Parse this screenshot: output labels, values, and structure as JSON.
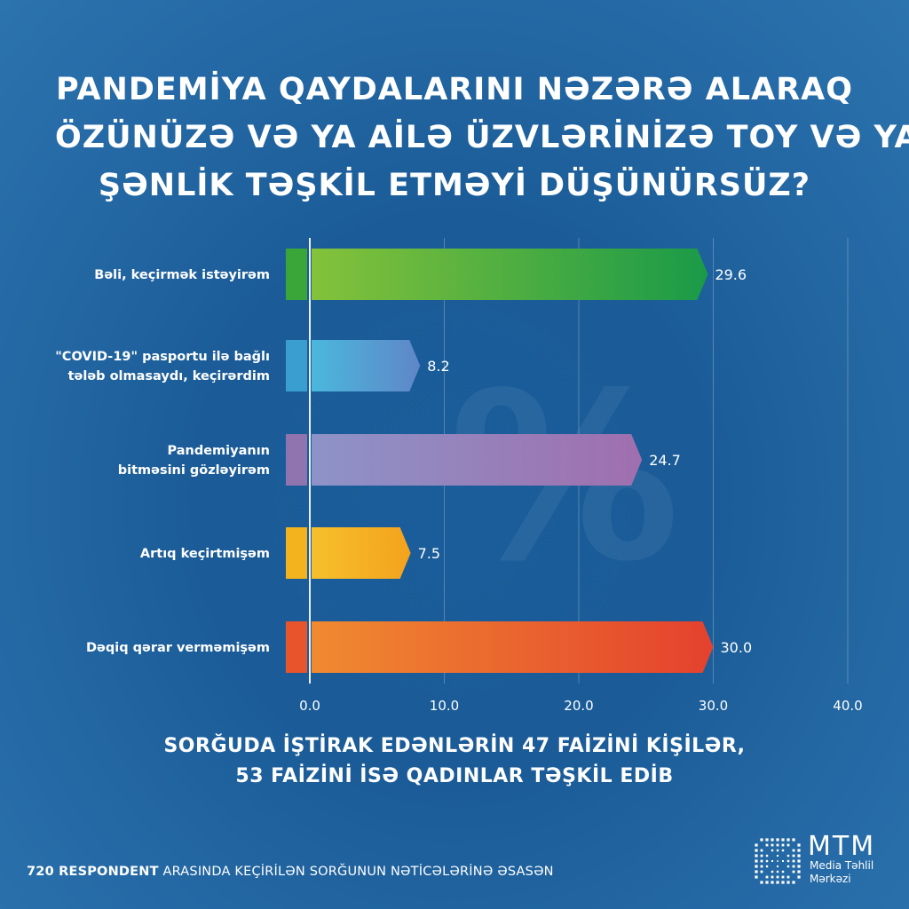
{
  "title_lines": [
    "PANDEMİYA QAYDALARINI NƏZƏRƏ ALARAQ",
    "ÖZÜNÜZƏ VƏ YA AİLƏ ÜZVLƏRİNİZƏ TOY VƏ YA",
    "ŞƏNLİK TƏŞKİL ETMƏYİ DÜŞÜNÜRSÜZ?"
  ],
  "watermark_symbol": "%",
  "chart_data": {
    "type": "bar",
    "orientation": "horizontal",
    "categories": [
      [
        "Bəli, keçirmək istəyirəm"
      ],
      [
        "\"COVID-19\" pasportu ilə bağlı",
        "tələb olmasaydı, keçirərdim"
      ],
      [
        "Pandemiyanın",
        "bitməsini gözləyirəm"
      ],
      [
        "Artıq keçirtmişəm"
      ],
      [
        "Dəqiq qərar verməmişəm"
      ]
    ],
    "values": [
      29.6,
      8.2,
      24.7,
      7.5,
      30.0
    ],
    "value_labels": [
      "29.6",
      "8.2",
      "24.7",
      "7.5",
      "30.0"
    ],
    "xlim": [
      0,
      40
    ],
    "xticks": [
      0,
      10,
      20,
      30,
      40
    ],
    "xtick_labels": [
      "0.0",
      "10.0",
      "20.0",
      "30.0",
      "40.0"
    ],
    "grid": true,
    "colors": [
      [
        "#84c23a",
        "#1a9a48"
      ],
      [
        "#4ab8dc",
        "#5f86c8"
      ],
      [
        "#8d93c8",
        "#a06fae"
      ],
      [
        "#f6c02c",
        "#f4a21c"
      ],
      [
        "#f08a30",
        "#e4412e"
      ]
    ],
    "stub_colors": [
      "#3aa63a",
      "#3a9fd0",
      "#8f74b0",
      "#f3b31e",
      "#e8542b"
    ]
  },
  "subtitle_lines": [
    "SORĞUDA İŞTİRAK EDƏNLƏRİN 47 FAİZİNİ KİŞİLƏR,",
    "53 FAİZİNİ İSƏ QADINLAR TƏŞKİL EDİB"
  ],
  "footer": {
    "bold": "720 RESPONDENT",
    "rest": " ARASINDA KEÇİRİLƏN SORĞUNUN NƏTİCƏLƏRİNƏ ƏSASƏN"
  },
  "logo": {
    "name": "MTM",
    "sub_line1": "Media Təhlil",
    "sub_line2": "Mərkəzi"
  }
}
